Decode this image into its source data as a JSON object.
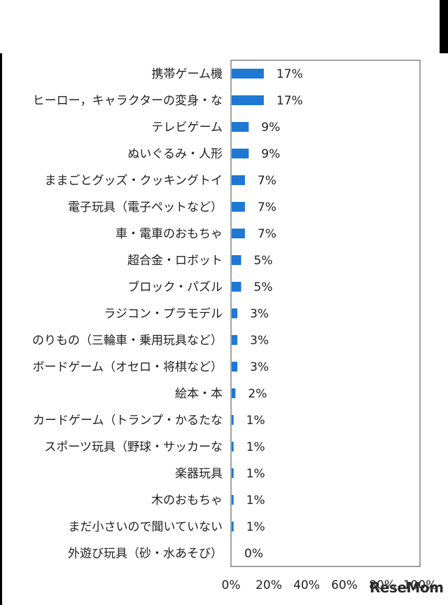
{
  "chart_data": {
    "type": "bar",
    "orientation": "horizontal",
    "categories": [
      "携帯ゲーム機",
      "ヒーロー，キャラクターの変身・な",
      "テレビゲーム",
      "ぬいぐるみ・人形",
      "ままごとグッズ・クッキングトイ",
      "電子玩具（電子ペットなど）",
      "車・電車のおもちゃ",
      "超合金・ロボット",
      "ブロック・パズル",
      "ラジコン・プラモデル",
      "のりもの（三輪車・乗用玩具など）",
      "ボードゲーム（オセロ・将棋など）",
      "絵本・本",
      "カードゲーム（トランプ・かるたな",
      "スポーツ玩具（野球・サッカーな",
      "楽器玩具",
      "木のおもちゃ",
      "まだ小さいので聞いていない",
      "外遊び玩具（砂・水あそび）"
    ],
    "values": [
      17,
      17,
      9,
      9,
      7,
      7,
      7,
      5,
      5,
      3,
      3,
      3,
      2,
      1,
      1,
      1,
      1,
      1,
      0
    ],
    "value_labels": [
      "17%",
      "17%",
      "9%",
      "9%",
      "7%",
      "7%",
      "7%",
      "5%",
      "5%",
      "3%",
      "3%",
      "3%",
      "2%",
      "1%",
      "1%",
      "1%",
      "1%",
      "1%",
      "0%"
    ],
    "xlim": [
      0,
      100
    ],
    "x_ticks": [
      "0%",
      "20%",
      "40%",
      "60%",
      "80%",
      "100%"
    ],
    "grid": false,
    "bar_color": "#1f78d4"
  },
  "watermark": "ReseMom"
}
